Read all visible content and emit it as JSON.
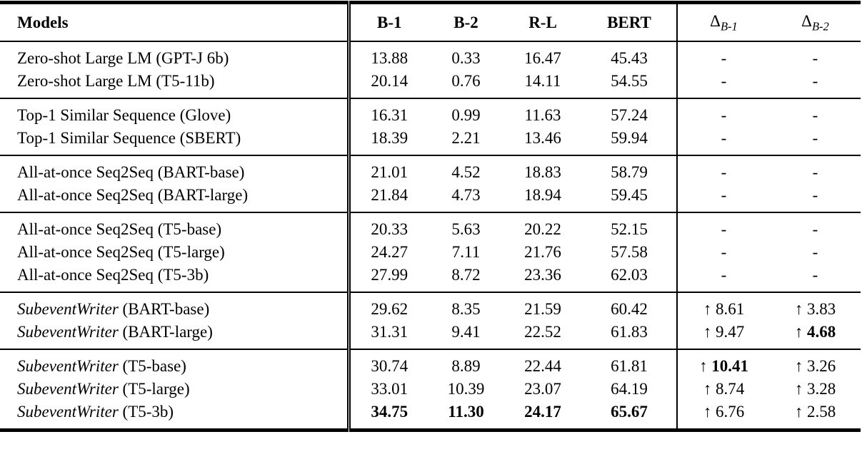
{
  "colors": {
    "background": "#ffffff",
    "text": "#000000",
    "rule": "#000000"
  },
  "table": {
    "header": {
      "models": "Models",
      "metrics": [
        "B-1",
        "B-2",
        "R-L",
        "BERT"
      ],
      "deltas": [
        {
          "symbol": "Δ",
          "sub": "B-1"
        },
        {
          "symbol": "Δ",
          "sub": "B-2"
        }
      ]
    },
    "up_arrow": "↑",
    "groups": [
      {
        "rows": [
          {
            "model": [
              {
                "t": "Zero-shot Large LM (GPT-J 6b)",
                "s": "normal"
              }
            ],
            "values": [
              "13.88",
              "0.33",
              "16.47",
              "45.43"
            ],
            "bold": [
              false,
              false,
              false,
              false
            ],
            "delta1": {
              "value": "-",
              "bold": false
            },
            "delta2": {
              "value": "-",
              "bold": false
            }
          },
          {
            "model": [
              {
                "t": "Zero-shot Large LM (T5-11b)",
                "s": "normal"
              }
            ],
            "values": [
              "20.14",
              "0.76",
              "14.11",
              "54.55"
            ],
            "bold": [
              false,
              false,
              false,
              false
            ],
            "delta1": {
              "value": "-",
              "bold": false
            },
            "delta2": {
              "value": "-",
              "bold": false
            }
          }
        ]
      },
      {
        "rows": [
          {
            "model": [
              {
                "t": "Top-1 Similar Sequence (Glove)",
                "s": "normal"
              }
            ],
            "values": [
              "16.31",
              "0.99",
              "11.63",
              "57.24"
            ],
            "bold": [
              false,
              false,
              false,
              false
            ],
            "delta1": {
              "value": "-",
              "bold": false
            },
            "delta2": {
              "value": "-",
              "bold": false
            }
          },
          {
            "model": [
              {
                "t": "Top-1 Similar Sequence (S",
                "s": "normal"
              },
              {
                "t": "BERT",
                "s": "smallcaps"
              },
              {
                "t": ")",
                "s": "normal"
              }
            ],
            "values": [
              "18.39",
              "2.21",
              "13.46",
              "59.94"
            ],
            "bold": [
              false,
              false,
              false,
              false
            ],
            "delta1": {
              "value": "-",
              "bold": false
            },
            "delta2": {
              "value": "-",
              "bold": false
            }
          }
        ]
      },
      {
        "rows": [
          {
            "model": [
              {
                "t": "All-at-once Seq2Seq (BART-base)",
                "s": "normal"
              }
            ],
            "values": [
              "21.01",
              "4.52",
              "18.83",
              "58.79"
            ],
            "bold": [
              false,
              false,
              false,
              false
            ],
            "delta1": {
              "value": "-",
              "bold": false
            },
            "delta2": {
              "value": "-",
              "bold": false
            }
          },
          {
            "model": [
              {
                "t": "All-at-once Seq2Seq (BART-large)",
                "s": "normal"
              }
            ],
            "values": [
              "21.84",
              "4.73",
              "18.94",
              "59.45"
            ],
            "bold": [
              false,
              false,
              false,
              false
            ],
            "delta1": {
              "value": "-",
              "bold": false
            },
            "delta2": {
              "value": "-",
              "bold": false
            }
          }
        ]
      },
      {
        "rows": [
          {
            "model": [
              {
                "t": "All-at-once Seq2Seq (T5-base)",
                "s": "normal"
              }
            ],
            "values": [
              "20.33",
              "5.63",
              "20.22",
              "52.15"
            ],
            "bold": [
              false,
              false,
              false,
              false
            ],
            "delta1": {
              "value": "-",
              "bold": false
            },
            "delta2": {
              "value": "-",
              "bold": false
            }
          },
          {
            "model": [
              {
                "t": "All-at-once Seq2Seq (T5-large)",
                "s": "normal"
              }
            ],
            "values": [
              "24.27",
              "7.11",
              "21.76",
              "57.58"
            ],
            "bold": [
              false,
              false,
              false,
              false
            ],
            "delta1": {
              "value": "-",
              "bold": false
            },
            "delta2": {
              "value": "-",
              "bold": false
            }
          },
          {
            "model": [
              {
                "t": "All-at-once Seq2Seq (T5-3b)",
                "s": "normal"
              }
            ],
            "values": [
              "27.99",
              "8.72",
              "23.36",
              "62.03"
            ],
            "bold": [
              false,
              false,
              false,
              false
            ],
            "delta1": {
              "value": "-",
              "bold": false
            },
            "delta2": {
              "value": "-",
              "bold": false
            }
          }
        ]
      },
      {
        "rows": [
          {
            "model": [
              {
                "t": "SubeventWriter",
                "s": "italic"
              },
              {
                "t": " (BART-base)",
                "s": "normal"
              }
            ],
            "values": [
              "29.62",
              "8.35",
              "21.59",
              "60.42"
            ],
            "bold": [
              false,
              false,
              false,
              false
            ],
            "delta1": {
              "arrow": "↑",
              "value": "8.61",
              "bold": false
            },
            "delta2": {
              "arrow": "↑",
              "value": "3.83",
              "bold": false
            }
          },
          {
            "model": [
              {
                "t": "SubeventWriter",
                "s": "italic"
              },
              {
                "t": " (BART-large)",
                "s": "normal"
              }
            ],
            "values": [
              "31.31",
              "9.41",
              "22.52",
              "61.83"
            ],
            "bold": [
              false,
              false,
              false,
              false
            ],
            "delta1": {
              "arrow": "↑",
              "value": "9.47",
              "bold": false
            },
            "delta2": {
              "arrow": "↑",
              "value": "4.68",
              "bold": true
            }
          }
        ]
      },
      {
        "rows": [
          {
            "model": [
              {
                "t": "SubeventWriter",
                "s": "italic"
              },
              {
                "t": " (T5-base)",
                "s": "normal"
              }
            ],
            "values": [
              "30.74",
              "8.89",
              "22.44",
              "61.81"
            ],
            "bold": [
              false,
              false,
              false,
              false
            ],
            "delta1": {
              "arrow": "↑",
              "value": "10.41",
              "bold": true
            },
            "delta2": {
              "arrow": "↑",
              "value": "3.26",
              "bold": false
            }
          },
          {
            "model": [
              {
                "t": "SubeventWriter",
                "s": "italic"
              },
              {
                "t": " (T5-large)",
                "s": "normal"
              }
            ],
            "values": [
              "33.01",
              "10.39",
              "23.07",
              "64.19"
            ],
            "bold": [
              false,
              false,
              false,
              false
            ],
            "delta1": {
              "arrow": "↑",
              "value": "8.74",
              "bold": false
            },
            "delta2": {
              "arrow": "↑",
              "value": "3.28",
              "bold": false
            }
          },
          {
            "model": [
              {
                "t": "SubeventWriter",
                "s": "italic"
              },
              {
                "t": " (T5-3b)",
                "s": "normal"
              }
            ],
            "values": [
              "34.75",
              "11.30",
              "24.17",
              "65.67"
            ],
            "bold": [
              true,
              true,
              true,
              true
            ],
            "delta1": {
              "arrow": "↑",
              "value": "6.76",
              "bold": false
            },
            "delta2": {
              "arrow": "↑",
              "value": "2.58",
              "bold": false
            }
          }
        ]
      }
    ]
  }
}
